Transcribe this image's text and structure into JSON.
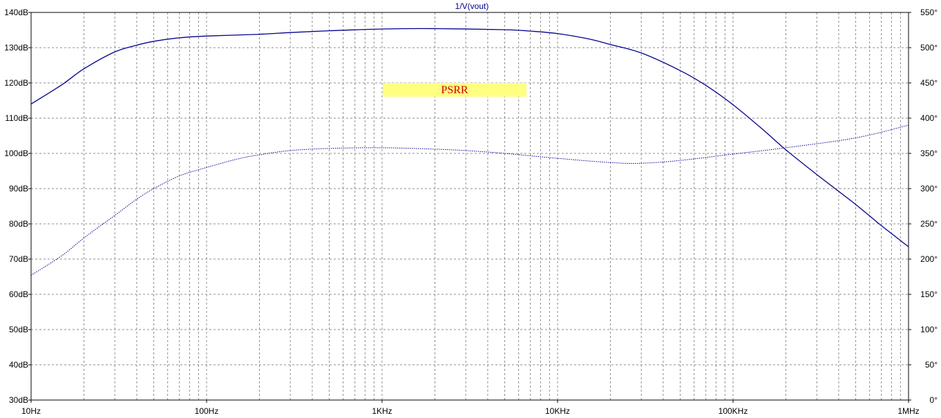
{
  "chart_data": {
    "type": "line",
    "title": "1/V(vout)",
    "annotation": "PSRR",
    "x_scale": "log",
    "xlim": [
      10,
      1000000
    ],
    "x_ticks": [
      {
        "value": 10,
        "label": "10Hz"
      },
      {
        "value": 100,
        "label": "100Hz"
      },
      {
        "value": 1000,
        "label": "1KHz"
      },
      {
        "value": 10000,
        "label": "10KHz"
      },
      {
        "value": 100000,
        "label": "100KHz"
      },
      {
        "value": 1000000,
        "label": "1MHz"
      }
    ],
    "y_left": {
      "unit": "dB",
      "lim": [
        30,
        140
      ],
      "ticks": [
        {
          "value": 30,
          "label": "30dB"
        },
        {
          "value": 40,
          "label": "40dB"
        },
        {
          "value": 50,
          "label": "50dB"
        },
        {
          "value": 60,
          "label": "60dB"
        },
        {
          "value": 70,
          "label": "70dB"
        },
        {
          "value": 80,
          "label": "80dB"
        },
        {
          "value": 90,
          "label": "90dB"
        },
        {
          "value": 100,
          "label": "100dB"
        },
        {
          "value": 110,
          "label": "110dB"
        },
        {
          "value": 120,
          "label": "120dB"
        },
        {
          "value": 130,
          "label": "130dB"
        },
        {
          "value": 140,
          "label": "140dB"
        }
      ]
    },
    "y_right": {
      "unit": "°",
      "lim": [
        0,
        550
      ],
      "ticks": [
        {
          "value": 0,
          "label": "0°"
        },
        {
          "value": 50,
          "label": "50°"
        },
        {
          "value": 100,
          "label": "100°"
        },
        {
          "value": 150,
          "label": "150°"
        },
        {
          "value": 200,
          "label": "200°"
        },
        {
          "value": 250,
          "label": "250°"
        },
        {
          "value": 300,
          "label": "300°"
        },
        {
          "value": 350,
          "label": "350°"
        },
        {
          "value": 400,
          "label": "400°"
        },
        {
          "value": 450,
          "label": "450°"
        },
        {
          "value": 500,
          "label": "500°"
        },
        {
          "value": 550,
          "label": "550°"
        }
      ]
    },
    "grid": true,
    "series": [
      {
        "axis": "left",
        "style": "solid",
        "color": "#00008b",
        "points": [
          [
            10,
            114
          ],
          [
            15,
            119.5
          ],
          [
            20,
            124
          ],
          [
            30,
            128.8
          ],
          [
            40,
            130.7
          ],
          [
            50,
            131.8
          ],
          [
            70,
            132.8
          ],
          [
            100,
            133.3
          ],
          [
            200,
            133.8
          ],
          [
            300,
            134.3
          ],
          [
            500,
            134.8
          ],
          [
            1000,
            135.3
          ],
          [
            2000,
            135.4
          ],
          [
            5000,
            135.1
          ],
          [
            7000,
            134.7
          ],
          [
            10000,
            134
          ],
          [
            15000,
            132.5
          ],
          [
            20000,
            130.9
          ],
          [
            30000,
            128.5
          ],
          [
            50000,
            123.5
          ],
          [
            70000,
            119.3
          ],
          [
            100000,
            113.8
          ],
          [
            150000,
            106.5
          ],
          [
            200000,
            101
          ],
          [
            300000,
            94
          ],
          [
            500000,
            85.5
          ],
          [
            700000,
            79.5
          ],
          [
            1000000,
            73.5
          ]
        ]
      },
      {
        "axis": "right",
        "style": "dotted",
        "color": "#00008b",
        "points": [
          [
            10,
            177
          ],
          [
            15,
            205
          ],
          [
            20,
            230
          ],
          [
            30,
            262
          ],
          [
            40,
            285
          ],
          [
            50,
            300
          ],
          [
            70,
            318
          ],
          [
            100,
            330
          ],
          [
            150,
            342
          ],
          [
            200,
            348
          ],
          [
            300,
            354
          ],
          [
            500,
            357
          ],
          [
            1000,
            358
          ],
          [
            2000,
            356
          ],
          [
            3000,
            354
          ],
          [
            5000,
            350
          ],
          [
            10000,
            343
          ],
          [
            20000,
            337
          ],
          [
            30000,
            336
          ],
          [
            50000,
            340
          ],
          [
            100000,
            349
          ],
          [
            200000,
            358
          ],
          [
            500000,
            372
          ],
          [
            1000000,
            390
          ]
        ]
      }
    ]
  }
}
